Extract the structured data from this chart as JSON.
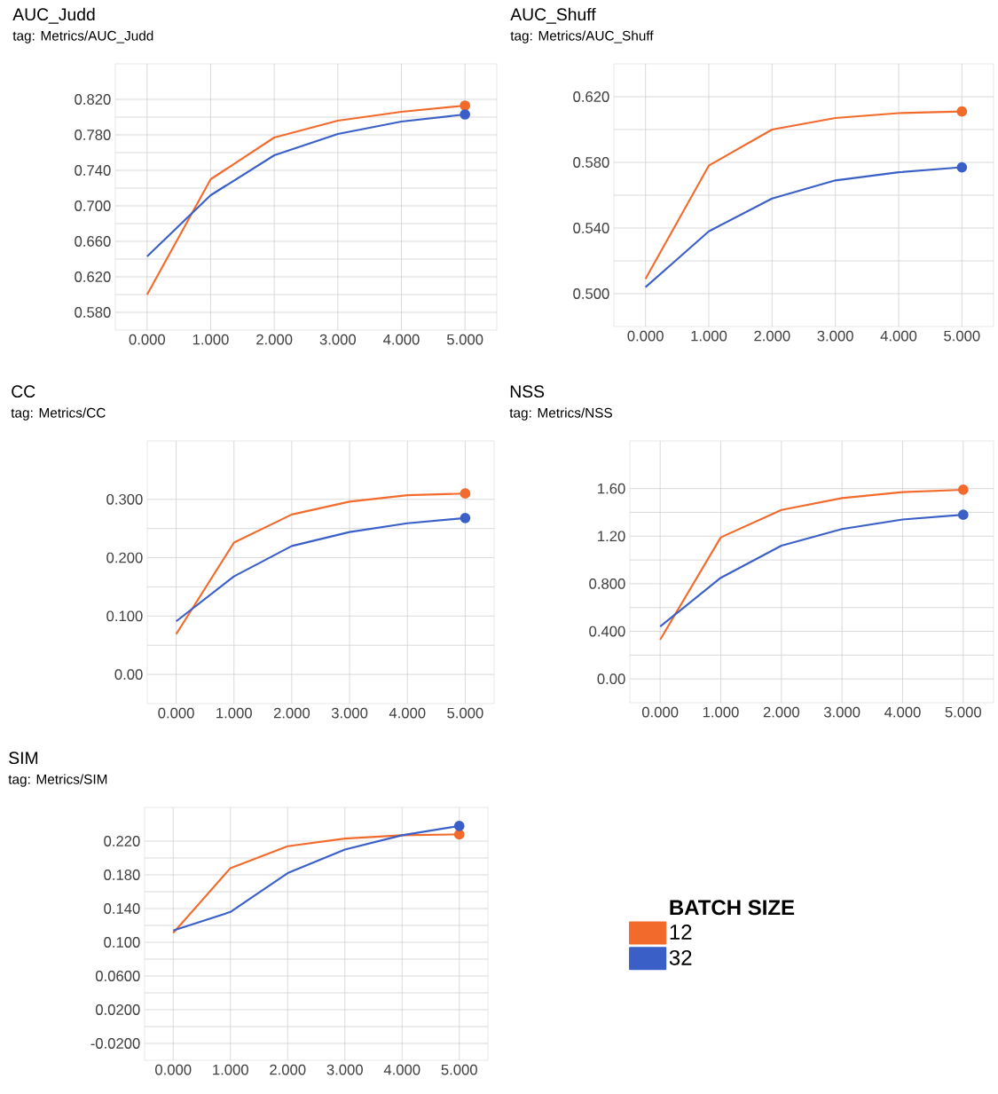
{
  "chart_data": [
    {
      "type": "line",
      "title": "AUC_Judd",
      "subtitle": "tag: Metrics/AUC_Judd",
      "x": [
        0,
        1,
        2,
        3,
        4,
        5
      ],
      "xlim": [
        -0.5,
        5.5
      ],
      "ylim": [
        0.56,
        0.86
      ],
      "xticks": [
        {
          "value": 0,
          "label": "0.000"
        },
        {
          "value": 1,
          "label": "1.000"
        },
        {
          "value": 2,
          "label": "2.000"
        },
        {
          "value": 3,
          "label": "3.000"
        },
        {
          "value": 4,
          "label": "4.000"
        },
        {
          "value": 5,
          "label": "5.000"
        }
      ],
      "yticks": [
        {
          "value": 0.58,
          "label": "0.580"
        },
        {
          "value": 0.62,
          "label": "0.620"
        },
        {
          "value": 0.66,
          "label": "0.660"
        },
        {
          "value": 0.7,
          "label": "0.700"
        },
        {
          "value": 0.74,
          "label": "0.740"
        },
        {
          "value": 0.78,
          "label": "0.780"
        },
        {
          "value": 0.82,
          "label": "0.820"
        }
      ],
      "grid": true,
      "line_style": "solid",
      "series": [
        {
          "color": "#f26b2c",
          "values": [
            0.6,
            0.73,
            0.777,
            0.796,
            0.806,
            0.813
          ]
        },
        {
          "color": "#3a60c8",
          "values": [
            0.643,
            0.712,
            0.757,
            0.781,
            0.795,
            0.803
          ]
        }
      ]
    },
    {
      "type": "line",
      "title": "AUC_Shuff",
      "subtitle": "tag: Metrics/AUC_Shuff",
      "x": [
        0,
        1,
        2,
        3,
        4,
        5
      ],
      "xlim": [
        -0.5,
        5.5
      ],
      "ylim": [
        0.48,
        0.64
      ],
      "xticks": [
        {
          "value": 0,
          "label": "0.000"
        },
        {
          "value": 1,
          "label": "1.000"
        },
        {
          "value": 2,
          "label": "2.000"
        },
        {
          "value": 3,
          "label": "3.000"
        },
        {
          "value": 4,
          "label": "4.000"
        },
        {
          "value": 5,
          "label": "5.000"
        }
      ],
      "yticks": [
        {
          "value": 0.5,
          "label": "0.500"
        },
        {
          "value": 0.54,
          "label": "0.540"
        },
        {
          "value": 0.58,
          "label": "0.580"
        },
        {
          "value": 0.62,
          "label": "0.620"
        }
      ],
      "grid": true,
      "line_style": "solid",
      "series": [
        {
          "color": "#f26b2c",
          "values": [
            0.509,
            0.578,
            0.6,
            0.607,
            0.61,
            0.611
          ]
        },
        {
          "color": "#3a60c8",
          "values": [
            0.504,
            0.538,
            0.558,
            0.569,
            0.574,
            0.577
          ]
        }
      ]
    },
    {
      "type": "line",
      "title": "CC",
      "subtitle": "tag: Metrics/CC",
      "x": [
        0,
        1,
        2,
        3,
        4,
        5
      ],
      "xlim": [
        -0.5,
        5.5
      ],
      "ylim": [
        -0.05,
        0.4
      ],
      "xticks": [
        {
          "value": 0,
          "label": "0.000"
        },
        {
          "value": 1,
          "label": "1.000"
        },
        {
          "value": 2,
          "label": "2.000"
        },
        {
          "value": 3,
          "label": "3.000"
        },
        {
          "value": 4,
          "label": "4.000"
        },
        {
          "value": 5,
          "label": "5.000"
        }
      ],
      "yticks": [
        {
          "value": 0,
          "label": "0.00"
        },
        {
          "value": 0.1,
          "label": "0.100"
        },
        {
          "value": 0.2,
          "label": "0.200"
        },
        {
          "value": 0.3,
          "label": "0.300"
        }
      ],
      "grid": true,
      "line_style": "solid",
      "series": [
        {
          "color": "#f26b2c",
          "values": [
            0.069,
            0.226,
            0.274,
            0.296,
            0.307,
            0.31
          ]
        },
        {
          "color": "#3a60c8",
          "values": [
            0.091,
            0.168,
            0.22,
            0.244,
            0.259,
            0.268
          ]
        }
      ]
    },
    {
      "type": "line",
      "title": "NSS",
      "subtitle": "tag: Metrics/NSS",
      "x": [
        0,
        1,
        2,
        3,
        4,
        5
      ],
      "xlim": [
        -0.5,
        5.5
      ],
      "ylim": [
        -0.2,
        2.0
      ],
      "xticks": [
        {
          "value": 0,
          "label": "0.000"
        },
        {
          "value": 1,
          "label": "1.000"
        },
        {
          "value": 2,
          "label": "2.000"
        },
        {
          "value": 3,
          "label": "3.000"
        },
        {
          "value": 4,
          "label": "4.000"
        },
        {
          "value": 5,
          "label": "5.000"
        }
      ],
      "yticks": [
        {
          "value": 0,
          "label": "0.00"
        },
        {
          "value": 0.4,
          "label": "0.400"
        },
        {
          "value": 0.8,
          "label": "0.800"
        },
        {
          "value": 1.2,
          "label": "1.20"
        },
        {
          "value": 1.6,
          "label": "1.60"
        }
      ],
      "grid": true,
      "line_style": "solid",
      "series": [
        {
          "color": "#f26b2c",
          "values": [
            0.33,
            1.19,
            1.42,
            1.52,
            1.57,
            1.59
          ]
        },
        {
          "color": "#3a60c8",
          "values": [
            0.44,
            0.85,
            1.12,
            1.26,
            1.34,
            1.38
          ]
        }
      ]
    },
    {
      "type": "line",
      "title": "SIM",
      "subtitle": "tag: Metrics/SIM",
      "x": [
        0,
        1,
        2,
        3,
        4,
        5
      ],
      "xlim": [
        -0.5,
        5.5
      ],
      "ylim": [
        -0.04,
        0.26
      ],
      "xticks": [
        {
          "value": 0,
          "label": "0.000"
        },
        {
          "value": 1,
          "label": "1.000"
        },
        {
          "value": 2,
          "label": "2.000"
        },
        {
          "value": 3,
          "label": "3.000"
        },
        {
          "value": 4,
          "label": "4.000"
        },
        {
          "value": 5,
          "label": "5.000"
        }
      ],
      "yticks": [
        {
          "value": -0.02,
          "label": "-0.0200"
        },
        {
          "value": 0.02,
          "label": "0.0200"
        },
        {
          "value": 0.06,
          "label": "0.0600"
        },
        {
          "value": 0.1,
          "label": "0.100"
        },
        {
          "value": 0.14,
          "label": "0.140"
        },
        {
          "value": 0.18,
          "label": "0.180"
        },
        {
          "value": 0.22,
          "label": "0.220"
        }
      ],
      "grid": true,
      "line_style": "solid",
      "legend": "right",
      "legend_title": "BATCH SIZE",
      "series": [
        {
          "name": "12",
          "color": "#f26b2c",
          "values": [
            0.111,
            0.188,
            0.214,
            0.223,
            0.227,
            0.228
          ]
        },
        {
          "name": "32",
          "color": "#3a60c8",
          "values": [
            0.114,
            0.136,
            0.182,
            0.21,
            0.227,
            0.238
          ]
        }
      ]
    }
  ]
}
